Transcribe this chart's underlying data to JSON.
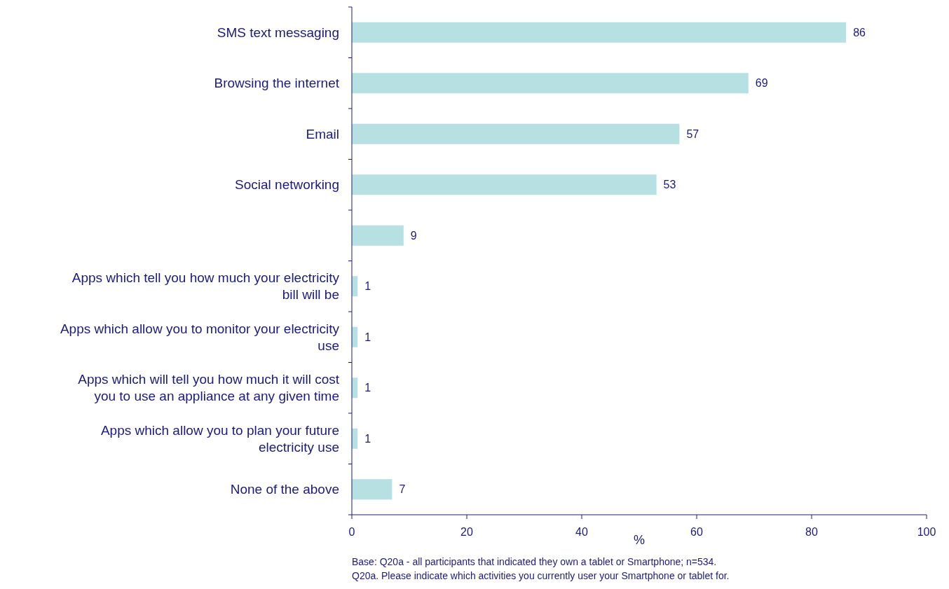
{
  "chart_data": {
    "type": "bar",
    "orientation": "horizontal",
    "xlabel": "%",
    "categories": [
      "SMS text messaging",
      "Browsing the internet",
      "Email",
      "Social networking",
      null,
      "Apps which tell you how much your electricity bill will be",
      "Apps which allow you to monitor your electricity use",
      "Apps which will tell you how much it will cost you to use an appliance at any given time",
      "Apps which allow you  to plan your future electricity use",
      "None of the above"
    ],
    "values": [
      86,
      69,
      57,
      53,
      9,
      1,
      1,
      1,
      1,
      7
    ],
    "color": "#b7e0e2",
    "xlim": [
      0,
      100
    ],
    "xticks": [
      0,
      20,
      40,
      60,
      80,
      100
    ],
    "data_labels": true,
    "grid": false,
    "annotations": [
      "Base: Q20a - all participants that indicated they own a tablet or Smartphone; n=534.",
      "Q20a. Please indicate which activities you currently user your Smartphone or tablet for."
    ]
  }
}
